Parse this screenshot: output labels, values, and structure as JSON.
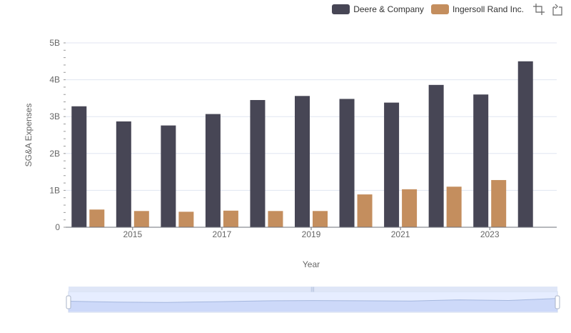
{
  "chart_data": {
    "type": "bar",
    "xlabel": "Year",
    "ylabel": "SG&A Expenses",
    "ylim": [
      0,
      5000000000
    ],
    "y_ticks": [
      "0",
      "1B",
      "2B",
      "3B",
      "4B",
      "5B"
    ],
    "x_ticks": [
      "2015",
      "2017",
      "2019",
      "2021",
      "2023"
    ],
    "categories": [
      "2014",
      "2015",
      "2016",
      "2017",
      "2018",
      "2019",
      "2020",
      "2021",
      "2022",
      "2023",
      "2024"
    ],
    "series": [
      {
        "name": "Deere & Company",
        "color": "#474655",
        "values": [
          3280000000,
          2870000000,
          2760000000,
          3070000000,
          3450000000,
          3560000000,
          3480000000,
          3380000000,
          3860000000,
          3600000000,
          4500000000
        ]
      },
      {
        "name": "Ingersoll Rand Inc.",
        "color": "#c48e5e",
        "values": [
          480000000,
          440000000,
          420000000,
          450000000,
          440000000,
          440000000,
          890000000,
          1030000000,
          1100000000,
          1280000000,
          null
        ]
      }
    ],
    "grid": true,
    "legend_position": "top-right"
  },
  "toolbox": {
    "zoom_icon": "data-zoom-icon",
    "reset_icon": "zoom-reset-icon"
  },
  "colors": {
    "grid": "#e0e6f1",
    "axis": "#6e7079",
    "slider_fill": "#e6edff",
    "slider_border": "#d2dbee",
    "slider_line": "#aabbdd"
  }
}
